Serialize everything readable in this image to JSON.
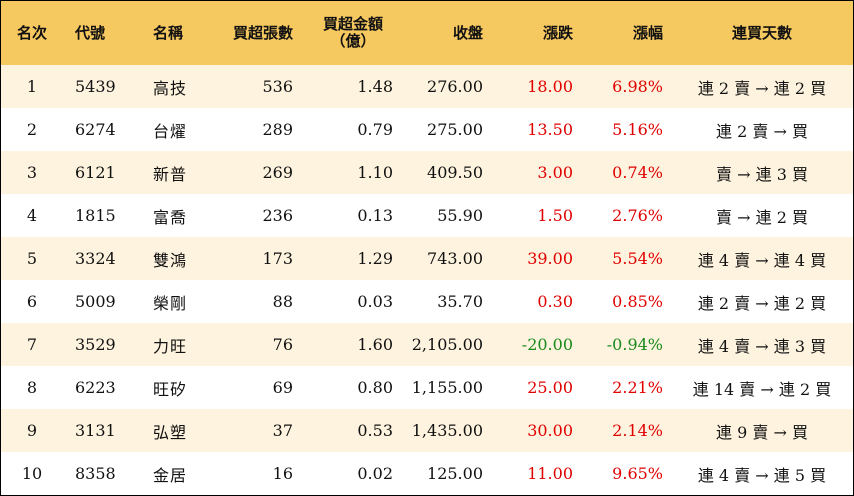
{
  "headers": {
    "rank": "名次",
    "code": "代號",
    "name": "名稱",
    "net_buy_lots": "買超張數",
    "net_buy_amount_line1": "買超金額",
    "net_buy_amount_line2": "（億）",
    "close": "收盤",
    "change": "漲跌",
    "change_pct": "漲幅",
    "consecutive_days": "連買天數"
  },
  "colors": {
    "header_bg": "#f6c860",
    "stripe_bg": "#fdf3de",
    "up": "#e00000",
    "down": "#1a8a1a"
  },
  "rows": [
    {
      "rank": "1",
      "code": "5439",
      "name": "高技",
      "lots": "536",
      "amount": "1.48",
      "close": "276.00",
      "change": "18.00",
      "pct": "6.98%",
      "trend": "up",
      "days": "連 2 賣 → 連 2 買"
    },
    {
      "rank": "2",
      "code": "6274",
      "name": "台燿",
      "lots": "289",
      "amount": "0.79",
      "close": "275.00",
      "change": "13.50",
      "pct": "5.16%",
      "trend": "up",
      "days": "連 2 賣 → 買"
    },
    {
      "rank": "3",
      "code": "6121",
      "name": "新普",
      "lots": "269",
      "amount": "1.10",
      "close": "409.50",
      "change": "3.00",
      "pct": "0.74%",
      "trend": "up",
      "days": "賣 → 連 3 買"
    },
    {
      "rank": "4",
      "code": "1815",
      "name": "富喬",
      "lots": "236",
      "amount": "0.13",
      "close": "55.90",
      "change": "1.50",
      "pct": "2.76%",
      "trend": "up",
      "days": "賣 → 連 2 買"
    },
    {
      "rank": "5",
      "code": "3324",
      "name": "雙鴻",
      "lots": "173",
      "amount": "1.29",
      "close": "743.00",
      "change": "39.00",
      "pct": "5.54%",
      "trend": "up",
      "days": "連 4 賣 → 連 4 買"
    },
    {
      "rank": "6",
      "code": "5009",
      "name": "榮剛",
      "lots": "88",
      "amount": "0.03",
      "close": "35.70",
      "change": "0.30",
      "pct": "0.85%",
      "trend": "up",
      "days": "連 2 賣 → 連 2 買"
    },
    {
      "rank": "7",
      "code": "3529",
      "name": "力旺",
      "lots": "76",
      "amount": "1.60",
      "close": "2,105.00",
      "change": "-20.00",
      "pct": "-0.94%",
      "trend": "down",
      "days": "連 4 賣 → 連 3 買"
    },
    {
      "rank": "8",
      "code": "6223",
      "name": "旺矽",
      "lots": "69",
      "amount": "0.80",
      "close": "1,155.00",
      "change": "25.00",
      "pct": "2.21%",
      "trend": "up",
      "days": "連 14 賣 → 連 2 買"
    },
    {
      "rank": "9",
      "code": "3131",
      "name": "弘塑",
      "lots": "37",
      "amount": "0.53",
      "close": "1,435.00",
      "change": "30.00",
      "pct": "2.14%",
      "trend": "up",
      "days": "連 9 賣 → 買"
    },
    {
      "rank": "10",
      "code": "8358",
      "name": "金居",
      "lots": "16",
      "amount": "0.02",
      "close": "125.00",
      "change": "11.00",
      "pct": "9.65%",
      "trend": "up",
      "days": "連 4 賣 → 連 5 買"
    }
  ]
}
